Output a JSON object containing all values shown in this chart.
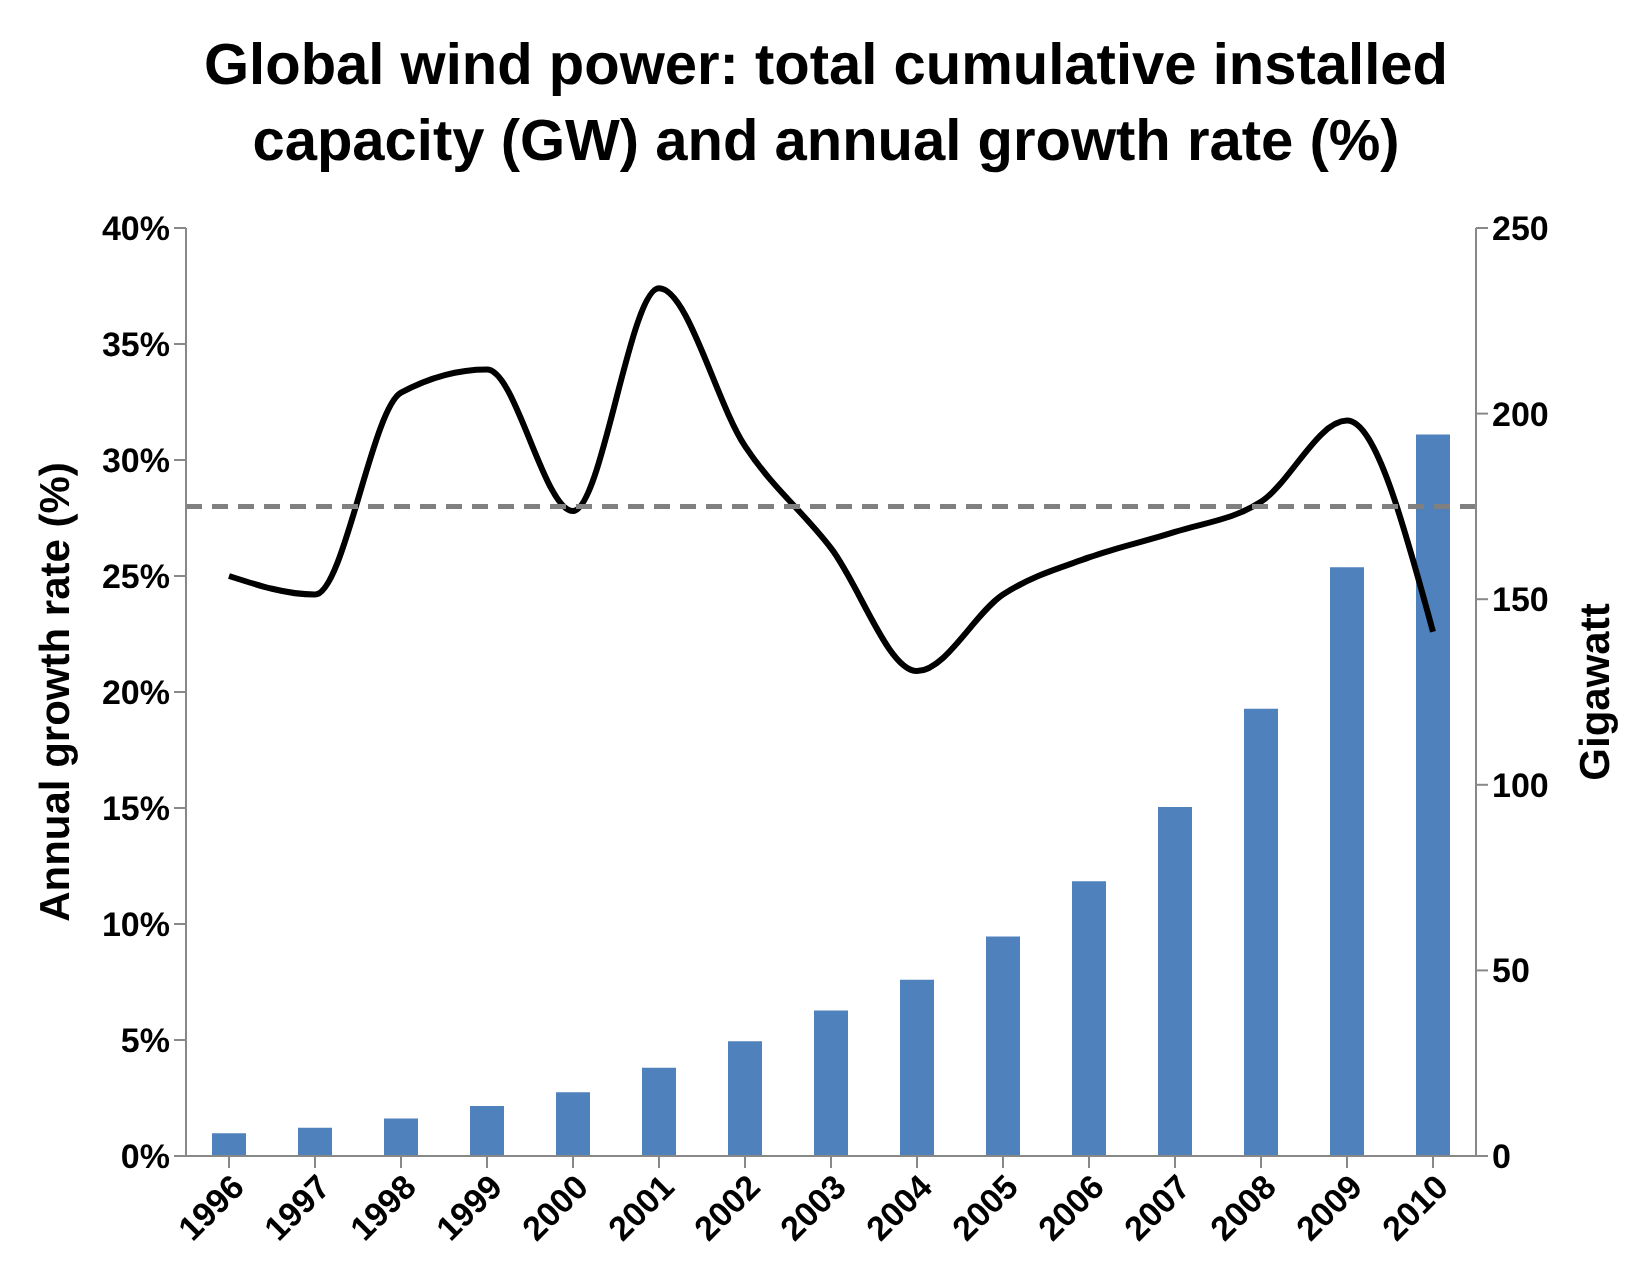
{
  "chart_data": {
    "type": "bar",
    "title": "Global wind power: total cumulative installed capacity (GW) and annual growth rate (%)",
    "ylabel": "Annual growth rate (%)",
    "y2label": "Gigawatt",
    "categories": [
      "1996",
      "1997",
      "1998",
      "1999",
      "2000",
      "2001",
      "2002",
      "2003",
      "2004",
      "2005",
      "2006",
      "2007",
      "2008",
      "2009",
      "2010"
    ],
    "series": [
      {
        "axis": "y2",
        "color": "#4f81bd",
        "values": [
          6.1,
          7.6,
          10.1,
          13.5,
          17.2,
          23.8,
          30.9,
          39.2,
          47.5,
          59.1,
          74,
          94,
          120.5,
          158.6,
          194.4
        ]
      },
      {
        "type": "line",
        "axis": "y",
        "color": "#000000",
        "values": [
          25,
          24.2,
          32.9,
          33.9,
          27.8,
          37.4,
          30.6,
          26.2,
          20.9,
          24.2,
          25.8,
          26.9,
          28.2,
          31.7,
          22.6
        ]
      }
    ],
    "ylim": [
      0,
      40
    ],
    "yticks": [
      {
        "value": 0,
        "label": "0%"
      },
      {
        "value": 5,
        "label": "5%"
      },
      {
        "value": 10,
        "label": "10%"
      },
      {
        "value": 15,
        "label": "15%"
      },
      {
        "value": 20,
        "label": "20%"
      },
      {
        "value": 25,
        "label": "25%"
      },
      {
        "value": 30,
        "label": "30%"
      },
      {
        "value": 35,
        "label": "35%"
      },
      {
        "value": 40,
        "label": "40%"
      }
    ],
    "y2lim": [
      0,
      250
    ],
    "y2ticks": [
      0,
      50,
      100,
      150,
      200,
      250
    ],
    "ref_lines": [
      {
        "axis": "y",
        "value": 28,
        "color": "#808080",
        "line_style": "dashed"
      }
    ],
    "marker": "none",
    "line_style": "solid",
    "grid": false,
    "legend": false
  }
}
